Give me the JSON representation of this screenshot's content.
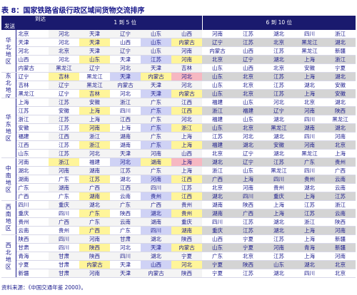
{
  "title": "表 8：国家铁路省级行政区域间货物交流排序",
  "header": {
    "corner_top": "到达",
    "corner_bottom": "发送",
    "group_1": "1 到 5 位",
    "group_2": "6 到 10 位"
  },
  "regions": [
    {
      "name": "华北地区",
      "rows": [
        {
          "origin": "北京",
          "dest": [
            "河北",
            "天津",
            "辽宁",
            "山东",
            "山西",
            "河南",
            "江苏",
            "湖北",
            "四川",
            "浙江"
          ]
        },
        {
          "origin": "天津",
          "dest": [
            "河北",
            "天津",
            "山西",
            "山东",
            "内蒙古",
            "辽宁",
            "江苏",
            "北京",
            "黑龙江",
            "湖北"
          ]
        },
        {
          "origin": "河北",
          "dest": [
            "北京",
            "天津",
            "辽宁",
            "山东",
            "河南",
            "内蒙古",
            "山西",
            "江苏",
            "黑龙江",
            "新疆"
          ]
        },
        {
          "origin": "山西",
          "dest": [
            "河北",
            "山东",
            "天津",
            "江苏",
            "河南",
            "北京",
            "辽宁",
            "湖北",
            "上海",
            "浙江"
          ]
        },
        {
          "origin": "内蒙古",
          "dest": [
            "黑龙江",
            "辽宁",
            "河北",
            "天津",
            "吉林",
            "山东",
            "山西",
            "北京",
            "安徽",
            "宁夏"
          ]
        }
      ]
    },
    {
      "name": "东北地区",
      "rows": [
        {
          "origin": "辽宁",
          "dest": [
            "吉林",
            "黑龙江",
            "天津",
            "内蒙古",
            "河北",
            "山东",
            "北京",
            "江苏",
            "上海",
            "湖北"
          ]
        },
        {
          "origin": "吉林",
          "dest": [
            "辽宁",
            "黑龙江",
            "内蒙古",
            "天津",
            "河北",
            "山东",
            "北京",
            "江苏",
            "湖北",
            "安徽"
          ]
        },
        {
          "origin": "黑龙江",
          "dest": [
            "辽宁",
            "吉林",
            "河北",
            "天津",
            "内蒙古",
            "山东",
            "北京",
            "江苏",
            "上海",
            "安徽"
          ]
        }
      ]
    },
    {
      "name": "华东地区",
      "rows": [
        {
          "origin": "上海",
          "dest": [
            "江苏",
            "安徽",
            "浙江",
            "广东",
            "江西",
            "福建",
            "山东",
            "河北",
            "北京",
            "湖北"
          ]
        },
        {
          "origin": "江苏",
          "dest": [
            "安徽",
            "上海",
            "四川",
            "广东",
            "江西",
            "浙江",
            "福建",
            "辽宁",
            "河南",
            "陕西"
          ]
        },
        {
          "origin": "浙江",
          "dest": [
            "江苏",
            "上海",
            "江西",
            "广东",
            "河北",
            "福建",
            "山东",
            "湖北",
            "四川",
            "黑龙江"
          ]
        },
        {
          "origin": "安徽",
          "dest": [
            "江苏",
            "河南",
            "上海",
            "广东",
            "浙江",
            "山东",
            "北京",
            "黑龙江",
            "湖南",
            "湖北"
          ]
        },
        {
          "origin": "福建",
          "dest": [
            "江西",
            "浙江",
            "湖南",
            "广东",
            "上海",
            "江苏",
            "河北",
            "湖北",
            "四川",
            "河南"
          ]
        },
        {
          "origin": "江西",
          "dest": [
            "江苏",
            "浙江",
            "湖南",
            "广东",
            "上海",
            "福建",
            "湖北",
            "安徽",
            "河南",
            "北京"
          ]
        },
        {
          "origin": "山东",
          "dest": [
            "江苏",
            "河北",
            "天津",
            "河南",
            "山西",
            "北京",
            "辽宁",
            "湖北",
            "黑龙江",
            "上海"
          ]
        }
      ]
    },
    {
      "name": "中南地区",
      "rows": [
        {
          "origin": "河南",
          "dest": [
            "浙江",
            "福建",
            "河北",
            "湖南",
            "上海",
            "湖北",
            "辽宁",
            "江苏",
            "广东",
            "贵州"
          ]
        },
        {
          "origin": "湖北",
          "dest": [
            "河南",
            "湖南",
            "江苏",
            "广东",
            "上海",
            "浙江",
            "山东",
            "黑龙江",
            "四川",
            "广西"
          ]
        },
        {
          "origin": "湖南",
          "dest": [
            "广东",
            "江苏",
            "湖北",
            "河南",
            "江西",
            "广西",
            "上海",
            "四川",
            "贵州",
            "云南"
          ]
        },
        {
          "origin": "广东",
          "dest": [
            "湖南",
            "广西",
            "江西",
            "四川",
            "江苏",
            "北京",
            "河南",
            "贵州",
            "湖北",
            "云南"
          ]
        },
        {
          "origin": "广西",
          "dest": [
            "广东",
            "湖南",
            "云南",
            "贵州",
            "江西",
            "湖北",
            "四川",
            "重庆",
            "上海",
            "江苏"
          ]
        }
      ]
    },
    {
      "name": "西南地区",
      "rows": [
        {
          "origin": "四川",
          "dest": [
            "重庆",
            "湖北",
            "广东",
            "广西",
            "贵州",
            "湖南",
            "陕西",
            "上海",
            "江苏",
            "浙江"
          ]
        },
        {
          "origin": "重庆",
          "dest": [
            "四川",
            "广东",
            "陕西",
            "湖北",
            "贵州",
            "湖南",
            "广西",
            "上海",
            "江苏",
            "云南"
          ]
        },
        {
          "origin": "贵州",
          "dest": [
            "广西",
            "广东",
            "云南",
            "湖南",
            "重庆",
            "四川",
            "江苏",
            "湖北",
            "浙江",
            "陕西"
          ]
        },
        {
          "origin": "云南",
          "dest": [
            "贵州",
            "广西",
            "广东",
            "四川",
            "湖南",
            "重庆",
            "江苏",
            "湖北",
            "上海",
            "河南"
          ]
        }
      ]
    },
    {
      "name": "西北地区",
      "rows": [
        {
          "origin": "陕西",
          "dest": [
            "四川",
            "河南",
            "甘肃",
            "湖北",
            "陕西",
            "山西",
            "宁夏",
            "江苏",
            "上海",
            "新疆"
          ]
        },
        {
          "origin": "甘肃",
          "dest": [
            "四川",
            "陕西",
            "河北",
            "天津",
            "内蒙古",
            "山东",
            "宁夏",
            "河南",
            "青海",
            "新疆"
          ]
        },
        {
          "origin": "青海",
          "dest": [
            "甘肃",
            "陕西",
            "四川",
            "湖北",
            "宁夏",
            "广东",
            "北京",
            "江苏",
            "上海",
            "河南"
          ]
        },
        {
          "origin": "宁夏",
          "dest": [
            "甘肃",
            "内蒙古",
            "天津",
            "山西",
            "河北",
            "宁夏",
            "陕西",
            "山东",
            "湖北",
            "北京"
          ]
        },
        {
          "origin": "新疆",
          "dest": [
            "甘肃",
            "河南",
            "天津",
            "内蒙古",
            "陕西",
            "宁夏",
            "江苏",
            "湖北",
            "四川",
            "北京"
          ]
        }
      ]
    }
  ],
  "source": "资料来源：《中国交通年鉴 2000》。"
}
